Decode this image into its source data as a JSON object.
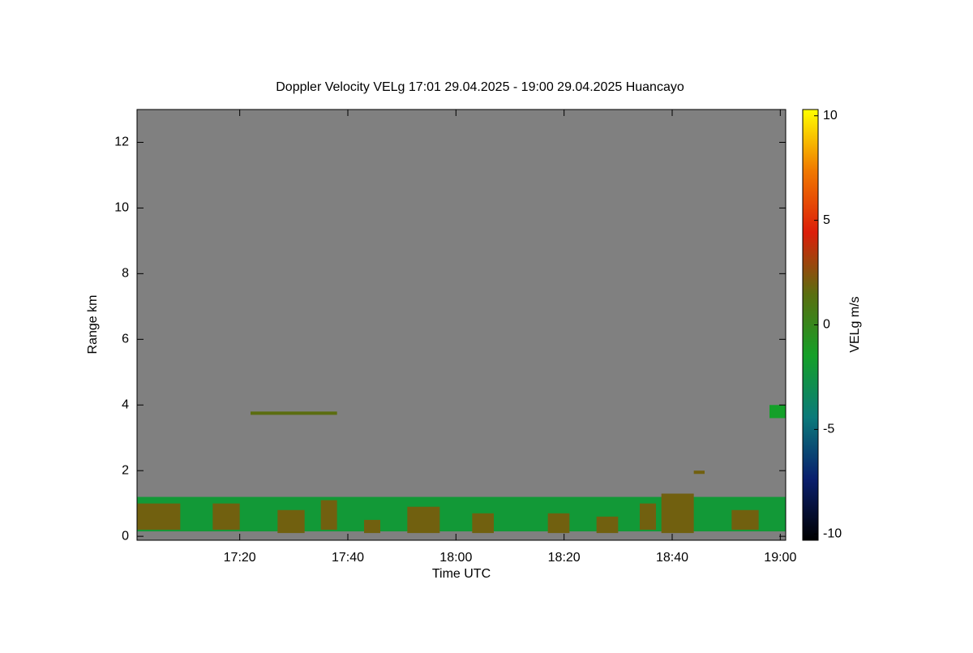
{
  "chart_data": {
    "type": "heatmap",
    "title": "Doppler Velocity VELg   17:01 29.04.2025 - 19:00 29.04.2025 Huancayo",
    "xlabel": "Time UTC",
    "ylabel": "Range km",
    "colorbar_label": "VELg m/s",
    "background": "#808080",
    "xlim": [
      1021,
      1141
    ],
    "xticks": [
      {
        "value": 1040,
        "label": "17:20"
      },
      {
        "value": 1060,
        "label": "17:40"
      },
      {
        "value": 1080,
        "label": "18:00"
      },
      {
        "value": 1100,
        "label": "18:20"
      },
      {
        "value": 1120,
        "label": "18:40"
      },
      {
        "value": 1140,
        "label": "19:00"
      }
    ],
    "ylim": [
      -0.12,
      13
    ],
    "yticks": [
      0,
      2,
      4,
      6,
      8,
      10,
      12
    ],
    "clim": [
      -10.3,
      10.3
    ],
    "cticks": [
      -10,
      -5,
      0,
      5,
      10
    ],
    "colorscale": [
      "#000000",
      "#0a1f6e",
      "#0b7a7a",
      "#14a028",
      "#5a6e10",
      "#dc1e0a",
      "#f07800",
      "#ffff00"
    ],
    "echoes": [
      {
        "t0": 1021,
        "t1": 1141,
        "r0": 0.15,
        "r1": 1.2,
        "v": -2
      },
      {
        "t0": 1021,
        "t1": 1029,
        "r0": 0.2,
        "r1": 1.0,
        "v": 2
      },
      {
        "t0": 1035,
        "t1": 1040,
        "r0": 0.2,
        "r1": 1.0,
        "v": 2
      },
      {
        "t0": 1047,
        "t1": 1052,
        "r0": 0.1,
        "r1": 0.8,
        "v": 2
      },
      {
        "t0": 1055,
        "t1": 1058,
        "r0": 0.2,
        "r1": 1.1,
        "v": 2
      },
      {
        "t0": 1063,
        "t1": 1066,
        "r0": 0.1,
        "r1": 0.5,
        "v": 2
      },
      {
        "t0": 1071,
        "t1": 1077,
        "r0": 0.1,
        "r1": 0.9,
        "v": 2
      },
      {
        "t0": 1083,
        "t1": 1087,
        "r0": 0.1,
        "r1": 0.7,
        "v": 2
      },
      {
        "t0": 1097,
        "t1": 1101,
        "r0": 0.1,
        "r1": 0.7,
        "v": 2
      },
      {
        "t0": 1106,
        "t1": 1110,
        "r0": 0.1,
        "r1": 0.6,
        "v": 2
      },
      {
        "t0": 1114,
        "t1": 1117,
        "r0": 0.2,
        "r1": 1.0,
        "v": 2
      },
      {
        "t0": 1118,
        "t1": 1124,
        "r0": 0.1,
        "r1": 1.3,
        "v": 2
      },
      {
        "t0": 1124,
        "t1": 1126,
        "r0": 1.9,
        "r1": 2.0,
        "v": 2
      },
      {
        "t0": 1131,
        "t1": 1136,
        "r0": 0.2,
        "r1": 0.8,
        "v": 2
      },
      {
        "t0": 1042,
        "t1": 1058,
        "r0": 3.7,
        "r1": 3.8,
        "v": 1.5
      },
      {
        "t0": 1138,
        "t1": 1141,
        "r0": 3.6,
        "r1": 4.0,
        "v": -1.5
      }
    ]
  }
}
